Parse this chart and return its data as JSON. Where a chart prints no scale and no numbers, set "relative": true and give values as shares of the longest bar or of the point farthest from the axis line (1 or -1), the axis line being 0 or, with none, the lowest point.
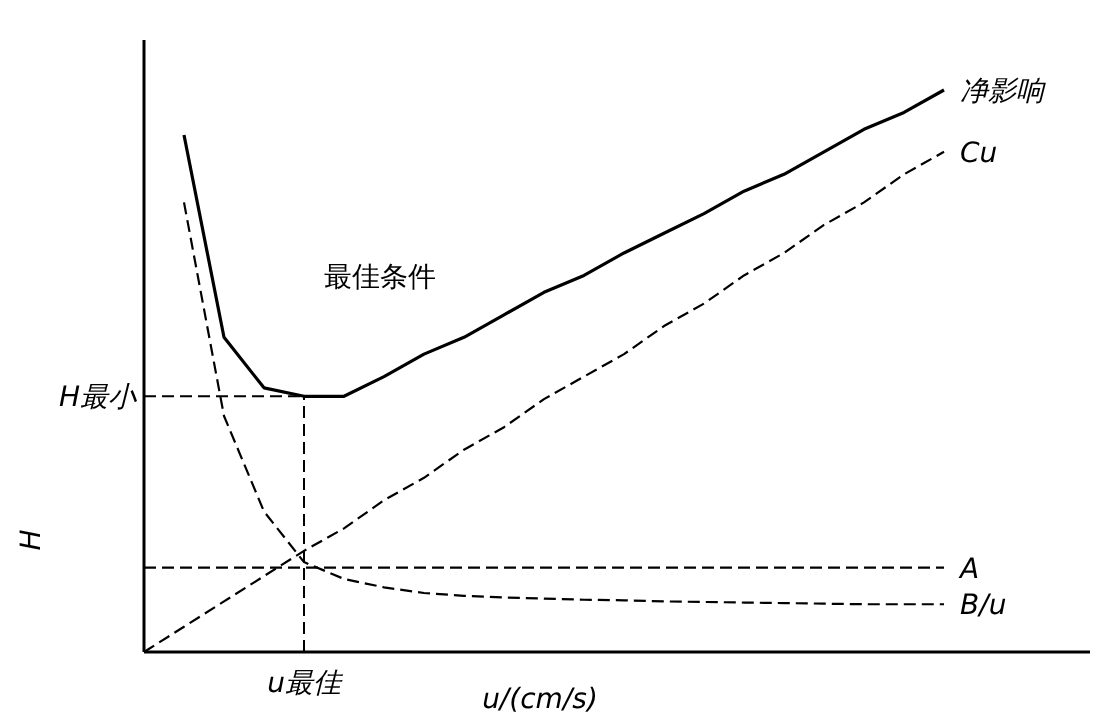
{
  "chart_data": {
    "type": "line",
    "relative": true,
    "xlabel": "u/(cm/s)",
    "ylabel": "H",
    "categories": [
      null,
      null,
      null,
      null,
      null,
      null,
      null,
      null,
      null,
      null,
      null,
      null,
      null,
      null,
      null,
      null,
      null,
      null,
      null,
      null,
      null
    ],
    "series": [
      {
        "name": "净影响",
        "color": "#000000",
        "line_style": "solid",
        "values": [
          null,
          0.92,
          0.56,
          0.47,
          0.455,
          0.455,
          0.49,
          0.53,
          0.56,
          0.6,
          0.64,
          0.67,
          0.71,
          0.745,
          0.78,
          0.82,
          0.85,
          0.89,
          0.93,
          0.96,
          1.0
        ]
      },
      {
        "name": "Cu",
        "color": "#000000",
        "line_style": "dashed",
        "values": [
          0,
          0.045,
          0.09,
          0.135,
          0.18,
          0.22,
          0.27,
          0.31,
          0.36,
          0.4,
          0.45,
          0.49,
          0.53,
          0.58,
          0.62,
          0.67,
          0.71,
          0.76,
          0.8,
          0.85,
          0.89
        ]
      },
      {
        "name": "A",
        "color": "#000000",
        "line_style": "dashed",
        "values": [
          0.15,
          0.15,
          0.15,
          0.15,
          0.15,
          0.15,
          0.15,
          0.15,
          0.15,
          0.15,
          0.15,
          0.15,
          0.15,
          0.15,
          0.15,
          0.15,
          0.15,
          0.15,
          0.15,
          0.15,
          0.15
        ]
      },
      {
        "name": "B/u",
        "color": "#000000",
        "line_style": "dashed",
        "values": [
          null,
          0.8,
          0.42,
          0.25,
          0.16,
          0.13,
          0.115,
          0.105,
          0.1,
          0.097,
          0.095,
          0.093,
          0.092,
          0.09,
          0.089,
          0.088,
          0.087,
          0.086,
          0.085,
          0.085,
          0.085
        ]
      }
    ],
    "ref_lines": [
      {
        "axis": "y",
        "value": 0.455,
        "label": "H最小",
        "line_style": "dashed"
      }
    ],
    "annotations": [
      "最佳条件",
      "u最佳"
    ],
    "marker": "none"
  }
}
